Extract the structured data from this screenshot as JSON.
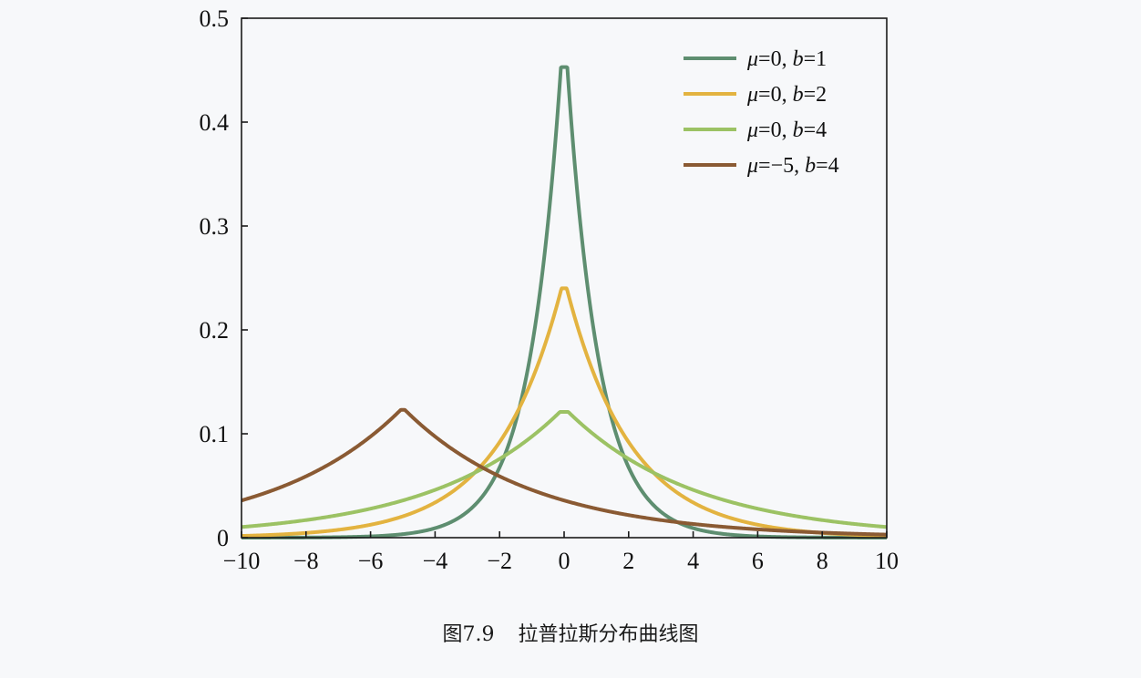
{
  "caption": {
    "figure_number": "图7.9",
    "title": "拉普拉斯分布曲线图"
  },
  "chart_data": {
    "type": "line",
    "title": "",
    "xlabel": "",
    "ylabel": "",
    "xlim": [
      -10,
      10
    ],
    "ylim": [
      0,
      0.5
    ],
    "x_ticks": [
      -10,
      -8,
      -6,
      -4,
      -2,
      0,
      2,
      4,
      6,
      8,
      10
    ],
    "x_tick_labels": [
      "−10",
      "−8",
      "−6",
      "−4",
      "−2",
      "0",
      "2",
      "4",
      "6",
      "8",
      "10"
    ],
    "y_ticks": [
      0,
      0.1,
      0.2,
      0.3,
      0.4,
      0.5
    ],
    "y_tick_labels": [
      "0",
      "0.1",
      "0.2",
      "0.3",
      "0.4",
      "0.5"
    ],
    "grid": false,
    "legend_position": "top-right",
    "series": [
      {
        "name": "μ=0, b=1",
        "mu_text": "μ",
        "param_text": "=0, ",
        "b_text": "b",
        "b_value_text": "=1",
        "mu": 0,
        "b": 1,
        "peak": 0.453,
        "color": "#5e8e70"
      },
      {
        "name": "μ=0, b=2",
        "mu_text": "μ",
        "param_text": "=0, ",
        "b_text": "b",
        "b_value_text": "=2",
        "mu": 0,
        "b": 2,
        "peak": 0.24,
        "color": "#e3b340"
      },
      {
        "name": "μ=0, b=4",
        "mu_text": "μ",
        "param_text": "=0, ",
        "b_text": "b",
        "b_value_text": "=4",
        "mu": 0,
        "b": 4,
        "peak": 0.121,
        "color": "#9cc264"
      },
      {
        "name": "μ=−5, b=4",
        "mu_text": "μ",
        "param_text": "=−5, ",
        "b_text": "b",
        "b_value_text": "=4",
        "mu": -5,
        "b": 4,
        "peak": 0.123,
        "color": "#8a5a33"
      }
    ]
  }
}
